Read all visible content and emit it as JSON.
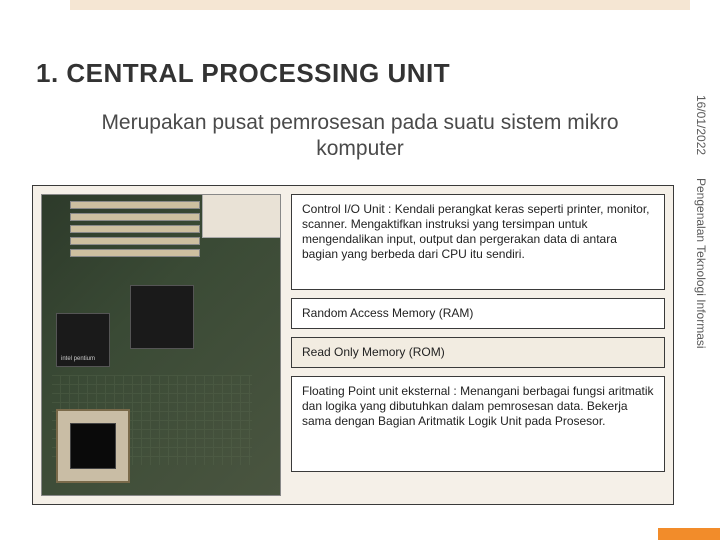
{
  "colors": {
    "background": "#ffffff",
    "panel_bg": "#f5f0e8",
    "top_accent": "#f5e6d3",
    "bottom_accent": "#f28c2a",
    "title_color": "#333333",
    "body_color": "#4a4a4a",
    "border": "#3a3a3a",
    "mobo_bg_from": "#2d3a2a",
    "mobo_bg_to": "#4a5540",
    "pci_slot": "#cdbfa0",
    "chip": "#1a1a1a",
    "socket": "#c9bda5"
  },
  "typography": {
    "title_fontsize": 26,
    "subtitle_fontsize": 21,
    "body_fontsize": 12,
    "sidecap_fontsize": 12,
    "font_family": "Arial"
  },
  "title": "1. CENTRAL PROCESSING UNIT",
  "subtitle": "Merupakan pusat pemrosesan pada suatu sistem mikro komputer",
  "date": "16/01/2022",
  "side_caption": "Pengenalan Teknologi Informasi",
  "image": {
    "alt": "motherboard-photo",
    "cpu_brand_hint": "intel pentium"
  },
  "callouts": [
    {
      "id": "control-io",
      "text": "Control I/O Unit : Kendali perangkat keras seperti printer, monitor, scanner. Mengaktifkan instruksi yang tersimpan untuk mengendalikan input, output dan pergerakan data di antara bagian yang berbeda dari CPU itu sendiri."
    },
    {
      "id": "ram",
      "text": "Random Access Memory (RAM)"
    },
    {
      "id": "rom",
      "text": "Read Only Memory (ROM)"
    },
    {
      "id": "fpu",
      "text": "Floating Point unit eksternal : Menangani berbagai fungsi aritmatik dan logika yang dibutuhkan dalam pemrosesan data. Bekerja sama dengan Bagian Aritmatik Logik Unit pada Prosesor."
    }
  ]
}
